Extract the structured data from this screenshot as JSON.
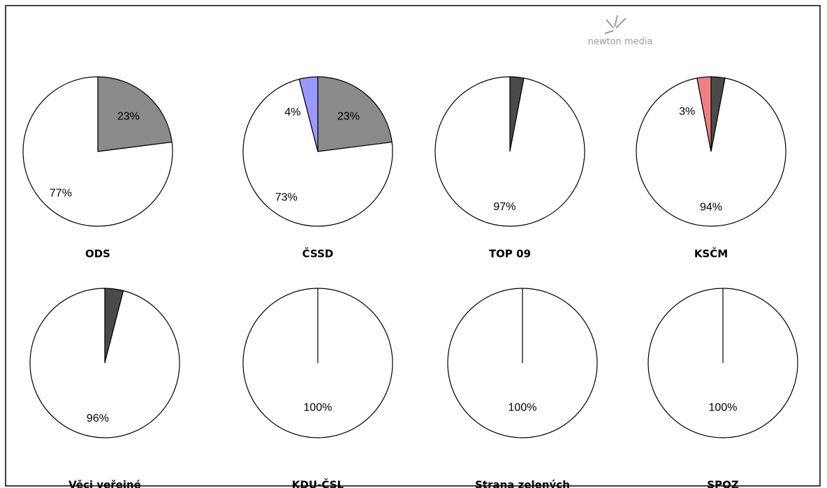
{
  "logo": "newton media",
  "chart_data": [
    {
      "type": "pie",
      "title": "ODS",
      "values": [
        23,
        77
      ],
      "value_labels": [
        "23%",
        "77%"
      ],
      "colors": [
        "#8a8a8a",
        "#ffffff"
      ]
    },
    {
      "type": "pie",
      "title": "ČSSD",
      "values": [
        23,
        73,
        4
      ],
      "value_labels": [
        "23%",
        "73%",
        "4%"
      ],
      "colors": [
        "#8a8a8a",
        "#ffffff",
        "#9999ff"
      ]
    },
    {
      "type": "pie",
      "title": "TOP 09",
      "values": [
        3,
        97
      ],
      "value_labels": [
        "3%",
        "97%"
      ],
      "colors": [
        "#4a4a4a",
        "#ffffff"
      ]
    },
    {
      "type": "pie",
      "title": "KSČM",
      "values": [
        3,
        94,
        3
      ],
      "value_labels": [
        "3%",
        "94%",
        "3%"
      ],
      "colors": [
        "#4a4a4a",
        "#ffffff",
        "#f08080"
      ]
    },
    {
      "type": "pie",
      "title": "Věci veřejné",
      "values": [
        4,
        96
      ],
      "value_labels": [
        "4%",
        "96%"
      ],
      "colors": [
        "#4a4a4a",
        "#ffffff"
      ]
    },
    {
      "type": "pie",
      "title": "KDU-ČSL",
      "values": [
        100
      ],
      "value_labels": [
        "100%"
      ],
      "colors": [
        "#ffffff"
      ]
    },
    {
      "type": "pie",
      "title": "Strana zelených",
      "values": [
        100
      ],
      "value_labels": [
        "100%"
      ],
      "colors": [
        "#ffffff"
      ]
    },
    {
      "type": "pie",
      "title": "SPOZ",
      "values": [
        100
      ],
      "value_labels": [
        "100%"
      ],
      "colors": [
        "#ffffff"
      ]
    }
  ]
}
